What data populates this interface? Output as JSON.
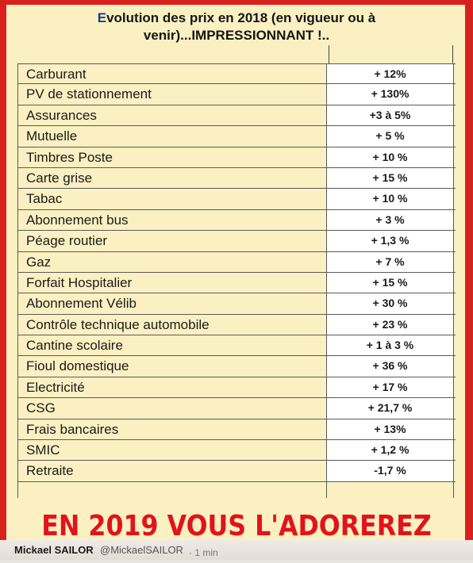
{
  "title": {
    "first_letter": "E",
    "line1_rest": "volution des prix en 2018 (en vigueur ou à",
    "line2": "venir)...IMPRESSIONNANT !.."
  },
  "table": {
    "rows": [
      {
        "label": "Carburant",
        "value": "+ 12%"
      },
      {
        "label": "PV de stationnement",
        "value": "+ 130%"
      },
      {
        "label": "Assurances",
        "value": "+3 à 5%"
      },
      {
        "label": "Mutuelle",
        "value": "+ 5 %"
      },
      {
        "label": "Timbres Poste",
        "value": "+ 10 %"
      },
      {
        "label": "Carte grise",
        "value": "+ 15 %"
      },
      {
        "label": "Tabac",
        "value": "+ 10 %"
      },
      {
        "label": "Abonnement bus",
        "value": "+ 3 %"
      },
      {
        "label": "Péage routier",
        "value": "+ 1,3 %"
      },
      {
        "label": "Gaz",
        "value": "+ 7 %"
      },
      {
        "label": "Forfait Hospitalier",
        "value": "+ 15 %"
      },
      {
        "label": "Abonnement Vélib",
        "value": "+ 30 %"
      },
      {
        "label": "Contrôle technique automobile",
        "value": "+ 23 %"
      },
      {
        "label": "Cantine scolaire",
        "value": "+ 1 à 3 %"
      },
      {
        "label": "Fioul domestique",
        "value": "+ 36 %"
      },
      {
        "label": "Electricité",
        "value": "+ 17 %"
      },
      {
        "label": "CSG",
        "value": "+ 21,7 %"
      },
      {
        "label": "Frais bancaires",
        "value": "+ 13%"
      },
      {
        "label": "SMIC",
        "value": "+ 1,2 %"
      },
      {
        "label": "Retraite",
        "value": "-1,7 %"
      }
    ]
  },
  "banner": "EN 2019 VOUS L'ADOREREZ",
  "footer": {
    "author": "Mickael SAILOR",
    "handle": "@MickaelSAILOR",
    "time": "· 1 min"
  },
  "colors": {
    "border_red": "#d8201c",
    "panel": "#fbf0c2",
    "banner_text": "#e2131a",
    "title_first_letter": "#1b3c8a"
  }
}
